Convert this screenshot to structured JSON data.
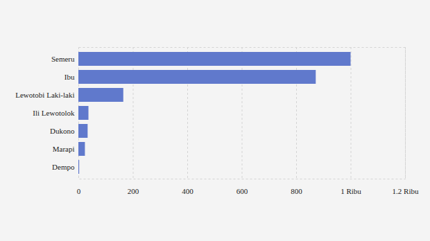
{
  "chart_data": {
    "type": "bar",
    "orientation": "horizontal",
    "categories": [
      "Semeru",
      "Ibu",
      "Lewotobi Laki-laki",
      "Ili Lewotolok",
      "Dukono",
      "Marapi",
      "Dempo"
    ],
    "values": [
      1000,
      872,
      165,
      37,
      34,
      24,
      3
    ],
    "color": "#6079cc",
    "xlim": [
      0,
      1200
    ],
    "xticks": [
      0,
      200,
      400,
      600,
      800,
      {
        "value": 1000,
        "label": "1 Ribu"
      },
      {
        "value": 1200,
        "label": "1.2 Ribu"
      }
    ],
    "grid": true
  }
}
